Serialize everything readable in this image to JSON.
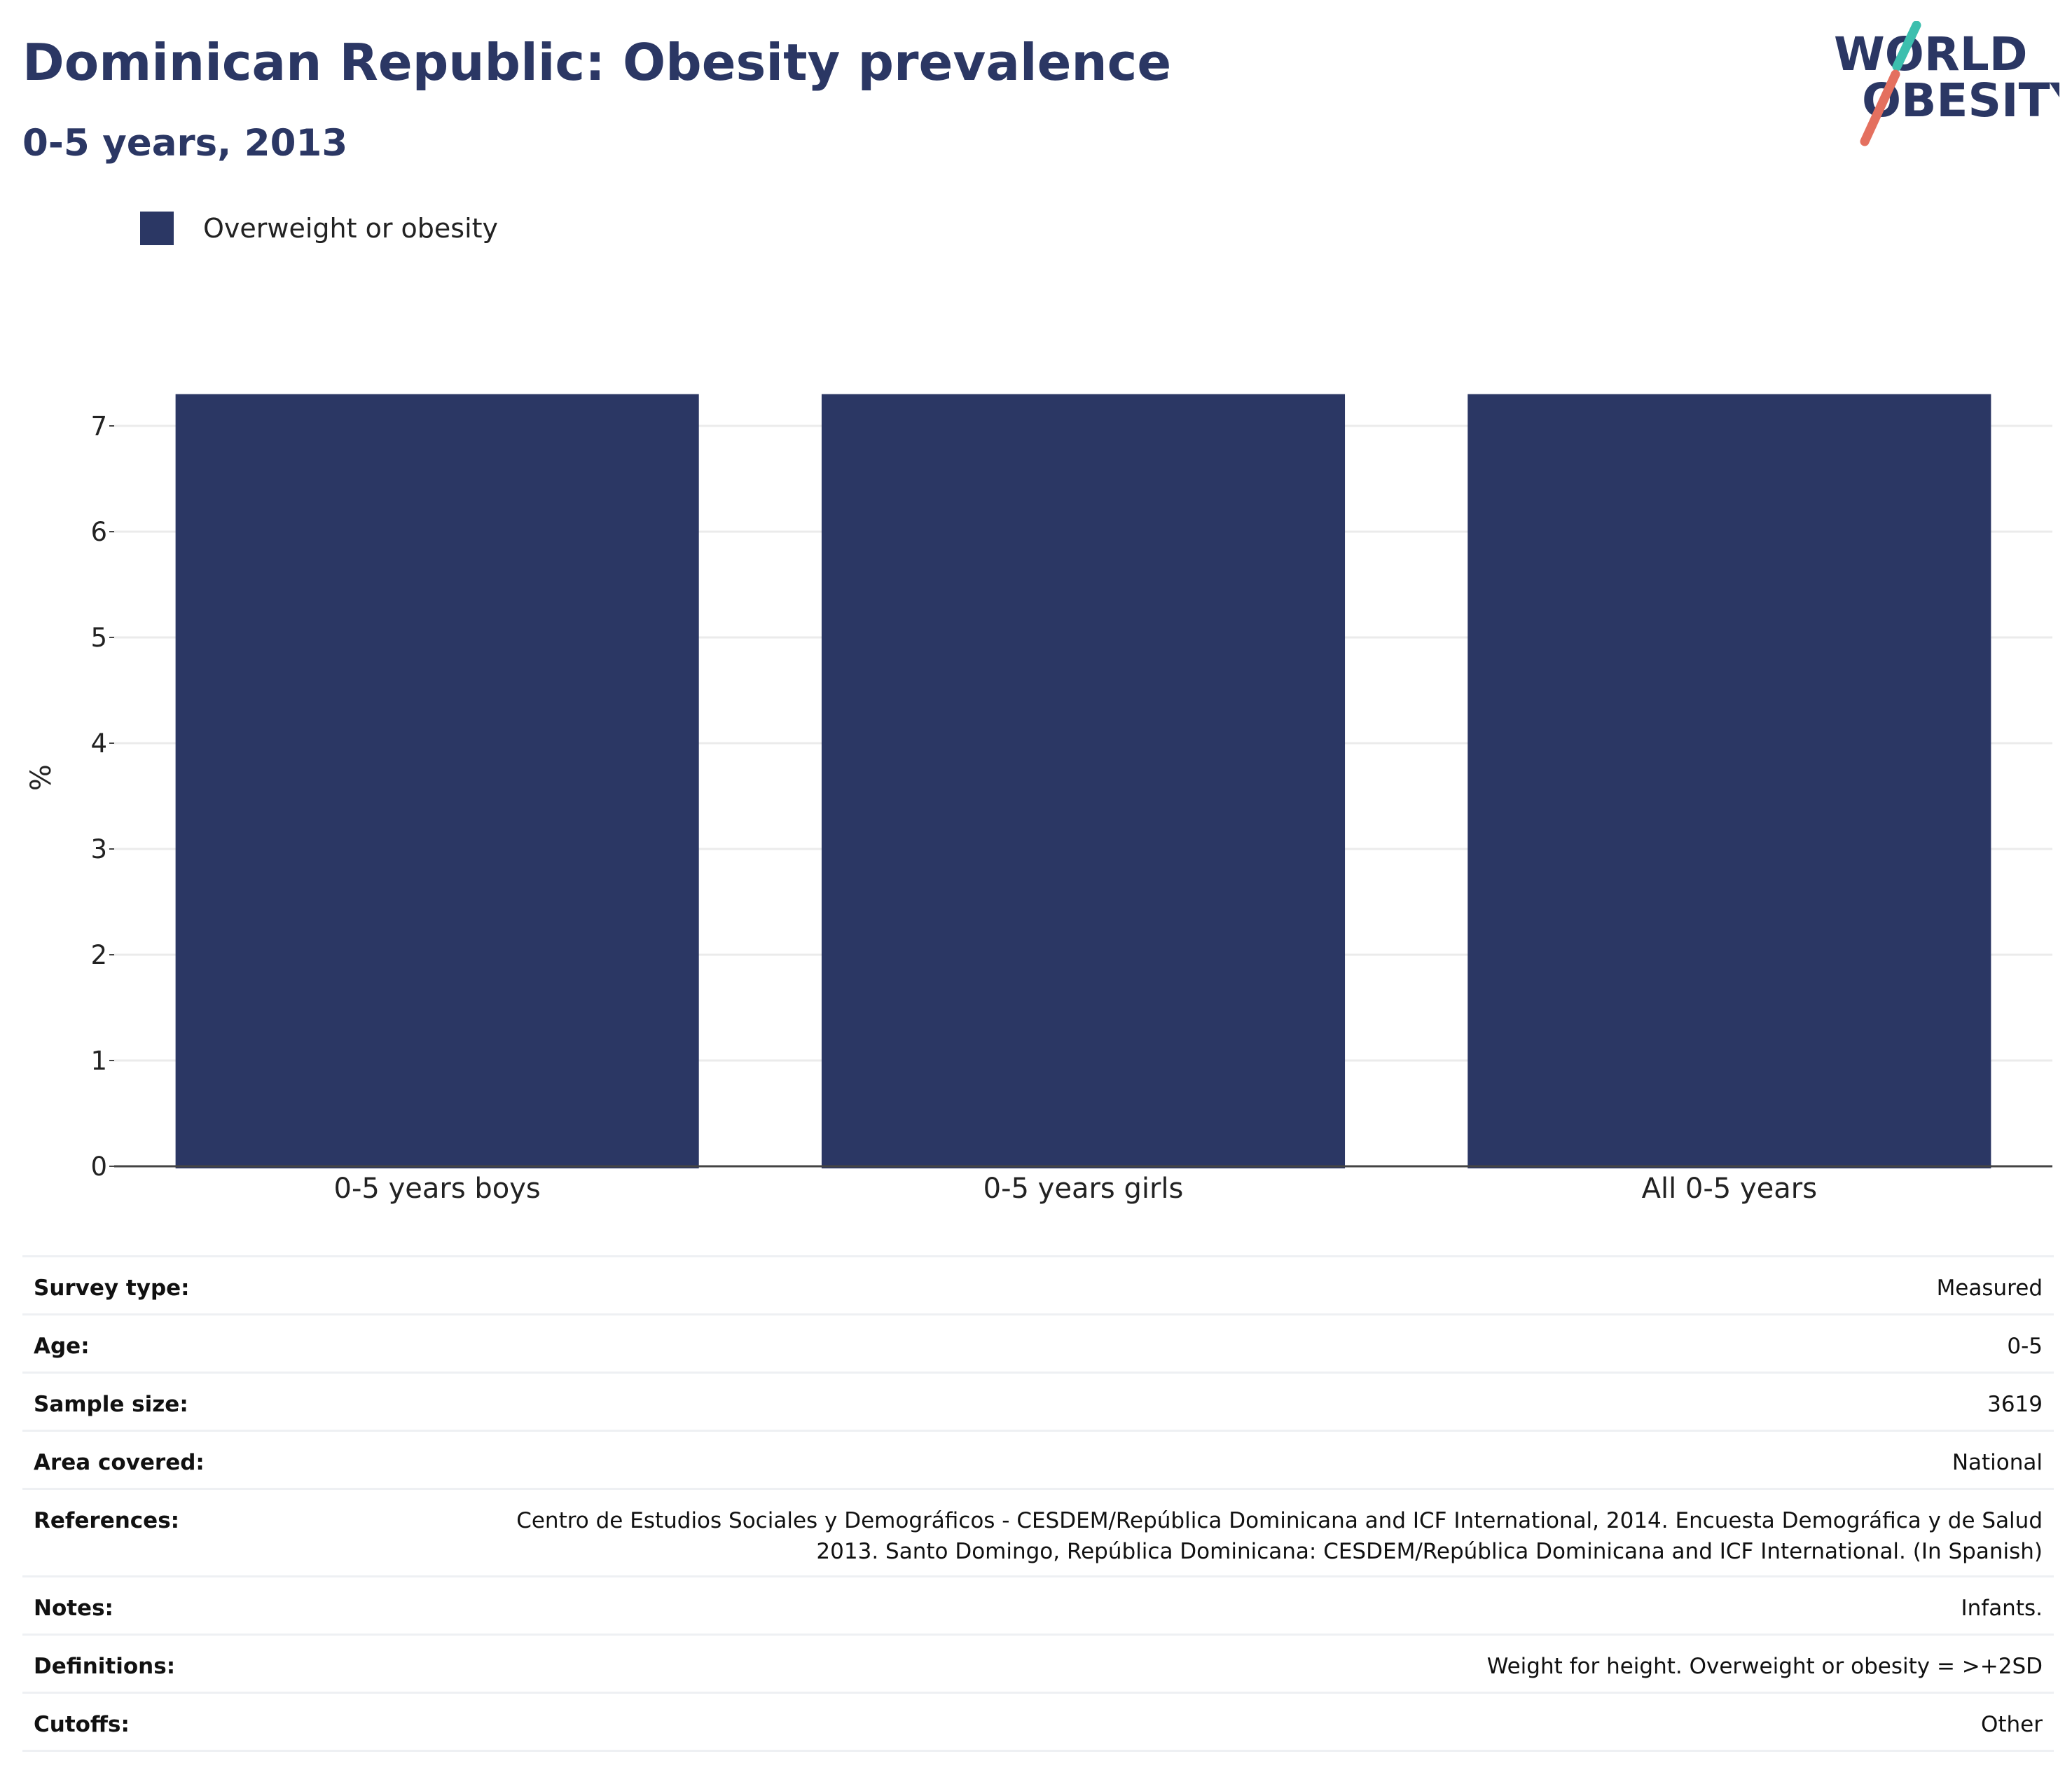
{
  "header": {
    "title": "Dominican Republic: Obesity prevalence",
    "subtitle": "0-5 years, 2013"
  },
  "logo": {
    "line1": "WORLD",
    "line2": "OBESITY",
    "text_color": "#2b3764",
    "slash_colors": [
      "#3cbfae",
      "#e4705f"
    ]
  },
  "chart_data": {
    "type": "bar",
    "categories": [
      "0-5 years boys",
      "0-5 years girls",
      "All 0-5 years"
    ],
    "series": [
      {
        "name": "Overweight or obesity",
        "values": [
          7.3,
          7.3,
          7.3
        ],
        "color": "#2b3764"
      }
    ],
    "ylabel": "%",
    "yticks": [
      0,
      1,
      2,
      3,
      4,
      5,
      6,
      7
    ],
    "ylim": [
      0,
      7.35
    ],
    "grid": true,
    "legend": "top-left"
  },
  "table": {
    "rows": [
      {
        "key": "Survey type:",
        "value": "Measured"
      },
      {
        "key": "Age:",
        "value": "0-5"
      },
      {
        "key": "Sample size:",
        "value": "3619"
      },
      {
        "key": "Area covered:",
        "value": "National"
      },
      {
        "key": "References:",
        "value": "Centro de Estudios Sociales y Demográficos - CESDEM/República Dominicana and ICF International, 2014. Encuesta Demográfica y de Salud 2013. Santo Domingo, República Dominicana: CESDEM/República Dominicana and ICF International. (In Spanish)"
      },
      {
        "key": "Notes:",
        "value": "Infants."
      },
      {
        "key": "Definitions:",
        "value": "Weight for height. Overweight or obesity = >+2SD"
      },
      {
        "key": "Cutoffs:",
        "value": "Other"
      }
    ]
  }
}
